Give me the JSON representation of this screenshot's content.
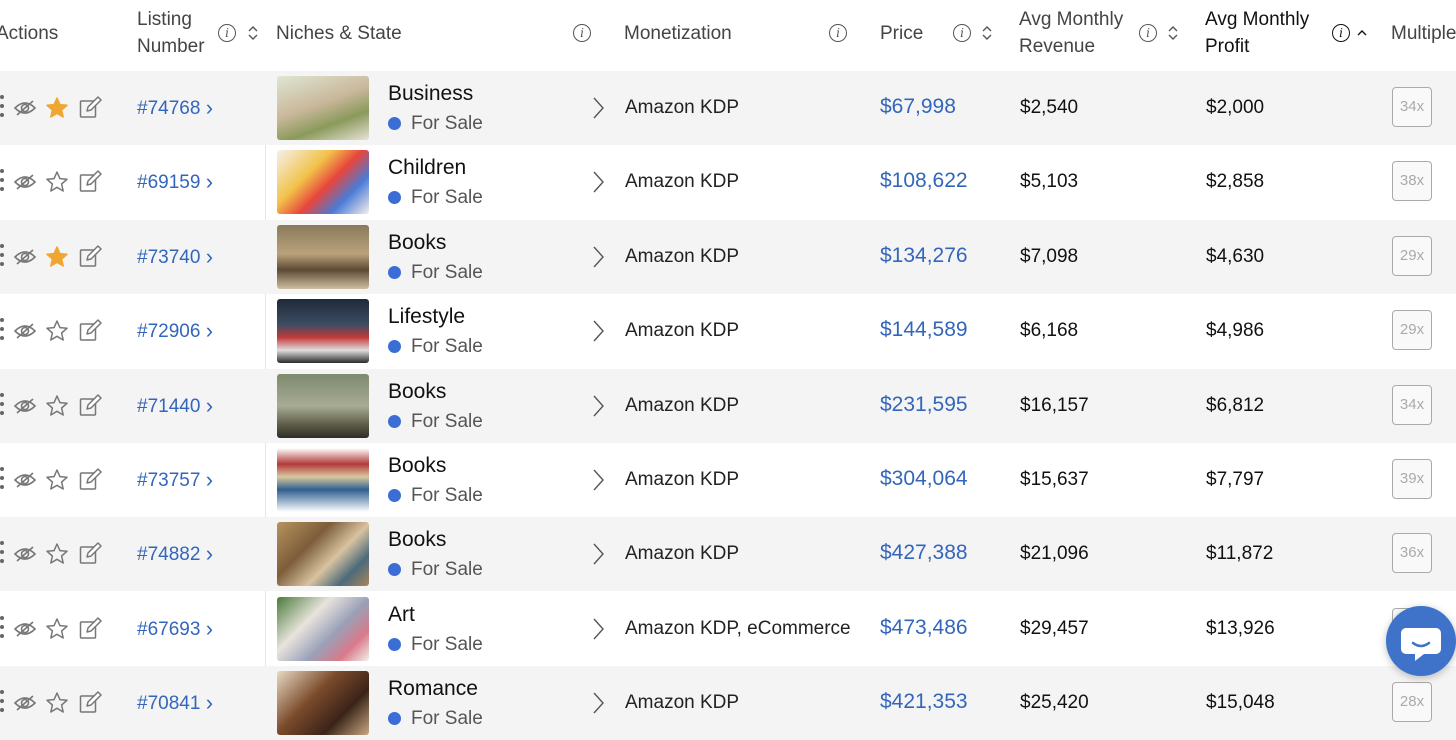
{
  "header": {
    "actions": "Actions",
    "listing_number_l1": "Listing",
    "listing_number_l2": "Number",
    "niches_state": "Niches & State",
    "monetization": "Monetization",
    "price": "Price",
    "avg_revenue_l1": "Avg Monthly",
    "avg_revenue_l2": "Revenue",
    "avg_profit_l1": "Avg Monthly",
    "avg_profit_l2": "Profit",
    "multiple": "Multiple"
  },
  "colors": {
    "link_blue": "#3366bb",
    "star_gold": "#f0a732",
    "dot_blue": "#3a6ed6",
    "row_alt": "#f4f4f4"
  },
  "rows": [
    {
      "listing": "#74768",
      "niche": "Business",
      "state": "For Sale",
      "monetization": "Amazon KDP",
      "price": "$67,998",
      "revenue": "$2,540",
      "profit": "$2,000",
      "multiple": "34x",
      "starred": true
    },
    {
      "listing": "#69159",
      "niche": "Children",
      "state": "For Sale",
      "monetization": "Amazon KDP",
      "price": "$108,622",
      "revenue": "$5,103",
      "profit": "$2,858",
      "multiple": "38x",
      "starred": false
    },
    {
      "listing": "#73740",
      "niche": "Books",
      "state": "For Sale",
      "monetization": "Amazon KDP",
      "price": "$134,276",
      "revenue": "$7,098",
      "profit": "$4,630",
      "multiple": "29x",
      "starred": true
    },
    {
      "listing": "#72906",
      "niche": "Lifestyle",
      "state": "For Sale",
      "monetization": "Amazon KDP",
      "price": "$144,589",
      "revenue": "$6,168",
      "profit": "$4,986",
      "multiple": "29x",
      "starred": false
    },
    {
      "listing": "#71440",
      "niche": "Books",
      "state": "For Sale",
      "monetization": "Amazon KDP",
      "price": "$231,595",
      "revenue": "$16,157",
      "profit": "$6,812",
      "multiple": "34x",
      "starred": false
    },
    {
      "listing": "#73757",
      "niche": "Books",
      "state": "For Sale",
      "monetization": "Amazon KDP",
      "price": "$304,064",
      "revenue": "$15,637",
      "profit": "$7,797",
      "multiple": "39x",
      "starred": false
    },
    {
      "listing": "#74882",
      "niche": "Books",
      "state": "For Sale",
      "monetization": "Amazon KDP",
      "price": "$427,388",
      "revenue": "$21,096",
      "profit": "$11,872",
      "multiple": "36x",
      "starred": false
    },
    {
      "listing": "#67693",
      "niche": "Art",
      "state": "For Sale",
      "monetization": "Amazon KDP, eCommerce",
      "price": "$473,486",
      "revenue": "$29,457",
      "profit": "$13,926",
      "multiple": "",
      "starred": false
    },
    {
      "listing": "#70841",
      "niche": "Romance",
      "state": "For Sale",
      "monetization": "Amazon KDP",
      "price": "$421,353",
      "revenue": "$25,420",
      "profit": "$15,048",
      "multiple": "28x",
      "starred": false
    }
  ]
}
